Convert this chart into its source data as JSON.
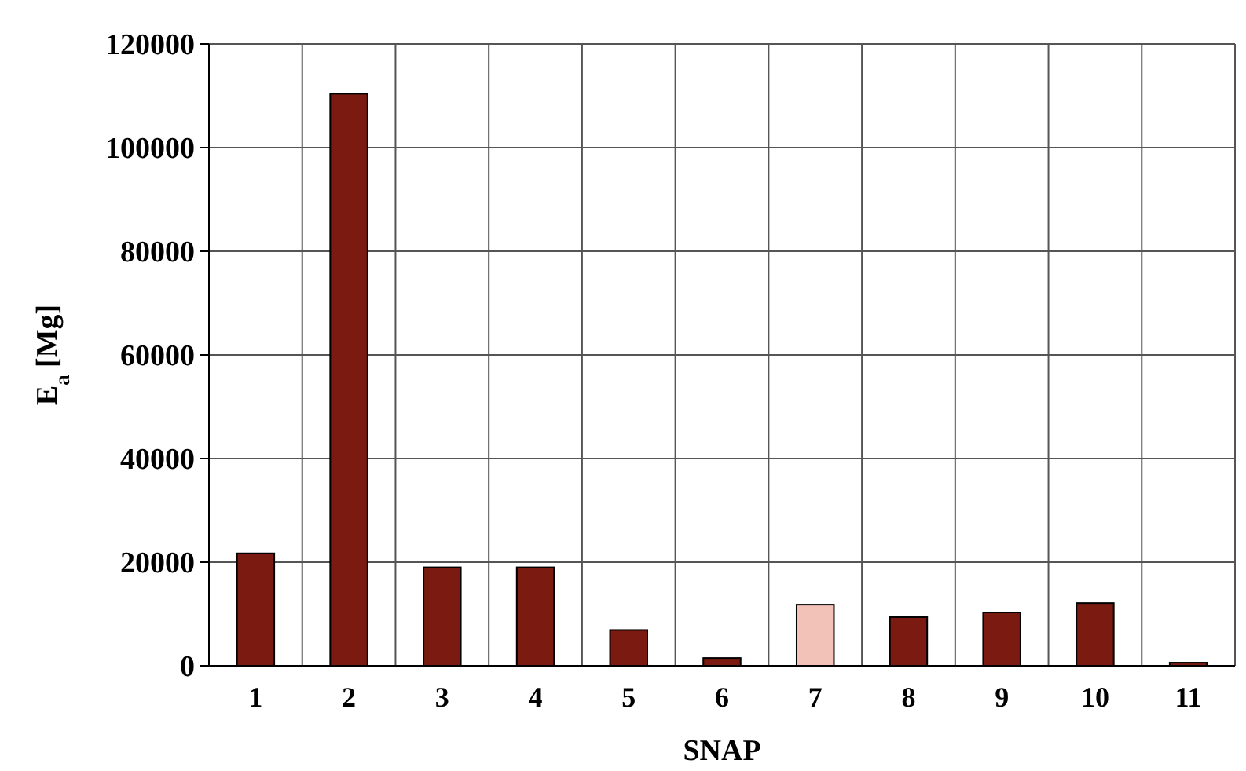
{
  "chart_data": {
    "type": "bar",
    "xlabel": "SNAP",
    "ylabel": "E$_{a}$ [Mg]",
    "categories": [
      "1",
      "2",
      "3",
      "4",
      "5",
      "6",
      "7",
      "8",
      "9",
      "10",
      "11"
    ],
    "values": [
      21700,
      110400,
      19000,
      19000,
      6900,
      1500,
      11800,
      9400,
      10300,
      12100,
      600
    ],
    "colors": [
      "#7a1a10",
      "#7a1a10",
      "#7a1a10",
      "#7a1a10",
      "#7a1a10",
      "#7a1a10",
      "#f2c2b8",
      "#7a1a10",
      "#7a1a10",
      "#7a1a10",
      "#7a1a10"
    ],
    "ylim": [
      0,
      120000
    ],
    "yticks": [
      0,
      20000,
      40000,
      60000,
      80000,
      100000,
      120000
    ],
    "grid": true
  }
}
